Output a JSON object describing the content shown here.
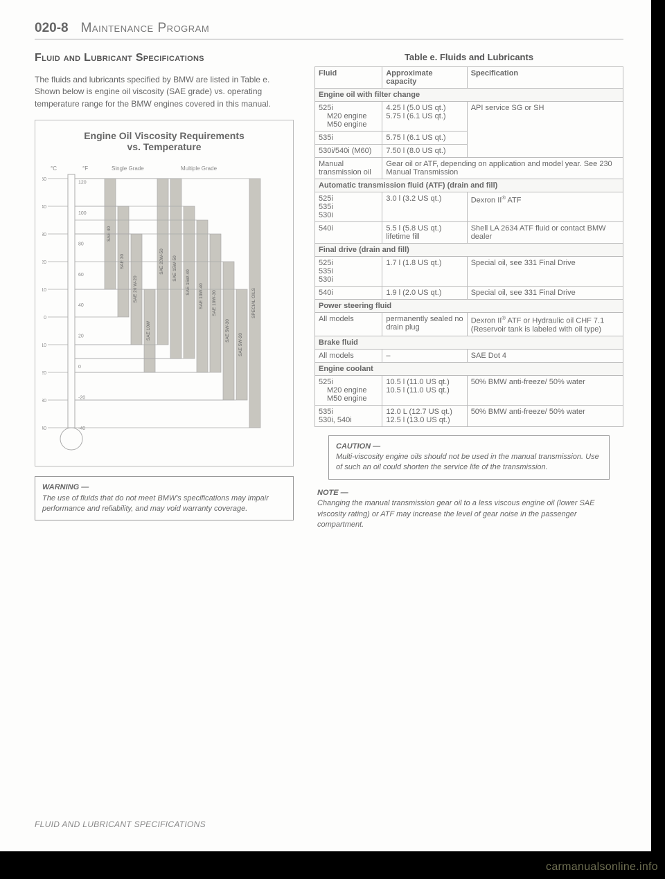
{
  "header": {
    "page_number": "020-8",
    "page_title": "Maintenance Program"
  },
  "section_heading": "Fluid and Lubricant Specifications",
  "intro_text": "The fluids and lubricants specified by BMW are listed in Table e. Shown below is engine oil viscosity (SAE grade) vs. operating temperature range for the BMW engines covered in this manual.",
  "chart": {
    "title_line1": "Engine Oil Viscosity Requirements",
    "title_line2": "vs. Temperature",
    "legend_single": "Single Grade",
    "legend_multi": "Multiple Grade",
    "c_label": "°C",
    "f_label": "°F",
    "c_ticks": [
      50,
      40,
      30,
      20,
      10,
      0,
      -10,
      -20,
      -30,
      -40
    ],
    "f_ticks": [
      120,
      100,
      80,
      60,
      40,
      20,
      0,
      -20,
      -40
    ],
    "background_color": "#fdfdfc",
    "line_color": "#aaaaaa",
    "bar_color": "#c8c6bf",
    "text_color": "#888888",
    "bars": [
      {
        "label": "SAE 40",
        "top_c": 50,
        "bot_c": 10
      },
      {
        "label": "SAE 30",
        "top_c": 40,
        "bot_c": 0
      },
      {
        "label": "SAE 20 W-20",
        "top_c": 30,
        "bot_c": -10
      },
      {
        "label": "SAE 10W",
        "top_c": 10,
        "bot_c": -20
      },
      {
        "label": "SAE 20W-50",
        "top_c": 50,
        "bot_c": -10
      },
      {
        "label": "SAE 15W-50",
        "top_c": 50,
        "bot_c": -15
      },
      {
        "label": "SAE 15W-40",
        "top_c": 40,
        "bot_c": -15
      },
      {
        "label": "SAE 10W-40",
        "top_c": 35,
        "bot_c": -20
      },
      {
        "label": "SAE 10W-30",
        "top_c": 30,
        "bot_c": -20
      },
      {
        "label": "SAE 5W-30",
        "top_c": 20,
        "bot_c": -30
      },
      {
        "label": "SAE 5W-20",
        "top_c": 10,
        "bot_c": -30
      },
      {
        "label": "SPECIAL OILS",
        "top_c": 50,
        "bot_c": -40
      }
    ]
  },
  "warning": {
    "label": "WARNING —",
    "text": "The use of fluids that do not meet BMW's specifications may impair performance and reliability, and may void warranty coverage."
  },
  "table": {
    "caption": "Table e. Fluids and Lubricants",
    "headers": [
      "Fluid",
      "Approximate capacity",
      "Specification"
    ],
    "sections": [
      {
        "title": "Engine oil with filter change",
        "rows": [
          {
            "fluid": "525i",
            "sub": [
              "M20 engine",
              "M50 engine"
            ],
            "cap": [
              "4.25 l (5.0 US qt.)",
              "5.75 l (6.1 US qt.)"
            ],
            "spec": "API service SG or SH",
            "spec_rowspan": 3
          },
          {
            "fluid": "535i",
            "cap": "5.75 l (6.1 US qt.)",
            "spec": null
          },
          {
            "fluid": "530i/540i (M60)",
            "cap": "7.50 l (8.0 US qt.)",
            "spec": null
          }
        ]
      },
      {
        "rows": [
          {
            "fluid": "Manual transmission oil",
            "cap_spec_merged": "Gear oil or ATF, depending on application and model year. See 230 Manual Transmission"
          }
        ]
      },
      {
        "title": "Automatic transmission fluid (ATF) (drain and fill)",
        "rows": [
          {
            "fluid": "525i\n535i\n530i",
            "cap": "3.0 l (3.2 US qt.)",
            "spec": "Dexron II® ATF"
          },
          {
            "fluid": "540i",
            "cap": "5.5 l (5.8 US qt.) lifetime fill",
            "spec": "Shell LA 2634 ATF fluid or contact BMW dealer"
          }
        ]
      },
      {
        "title": "Final drive (drain and fill)",
        "rows": [
          {
            "fluid": "525i\n535i\n530i",
            "cap": "1.7 l (1.8 US qt.)",
            "spec": "Special oil, see 331 Final Drive"
          },
          {
            "fluid": "540i",
            "cap": "1.9 l (2.0 US qt.)",
            "spec": "Special oil, see 331 Final Drive"
          }
        ]
      },
      {
        "title": "Power steering fluid",
        "rows": [
          {
            "fluid": "All models",
            "cap": "permanently sealed no drain plug",
            "spec": "Dexron II® ATF or Hydraulic oil CHF 7.1 (Reservoir tank is labeled with oil type)"
          }
        ]
      },
      {
        "title": "Brake fluid",
        "rows": [
          {
            "fluid": "All models",
            "cap": "–",
            "spec": "SAE Dot 4"
          }
        ]
      },
      {
        "title": "Engine coolant",
        "rows": [
          {
            "fluid": "525i",
            "sub": [
              "M20 engine",
              "M50 engine"
            ],
            "cap": [
              "10.5 l (11.0 US qt.)",
              "10.5 l (11.0 US qt.)"
            ],
            "spec": "50% BMW anti-freeze/ 50% water"
          },
          {
            "fluid": "535i\n530i, 540i",
            "cap": "12.0 L (12.7 US qt.)\n12.5 l (13.0 US qt.)",
            "spec": "50% BMW anti-freeze/ 50% water"
          }
        ]
      }
    ]
  },
  "caution": {
    "label": "CAUTION —",
    "text": "Multi-viscosity engine oils should not be used in the manual transmission. Use of such an oil could shorten the service life of the transmission."
  },
  "note": {
    "label": "NOTE —",
    "text": "Changing the manual transmission gear oil to a less viscous engine oil (lower SAE viscosity rating) or ATF may increase the level of gear noise in the passenger compartment."
  },
  "footer": "FLUID AND LUBRICANT SPECIFICATIONS",
  "watermark": "carmanualsonline.info"
}
